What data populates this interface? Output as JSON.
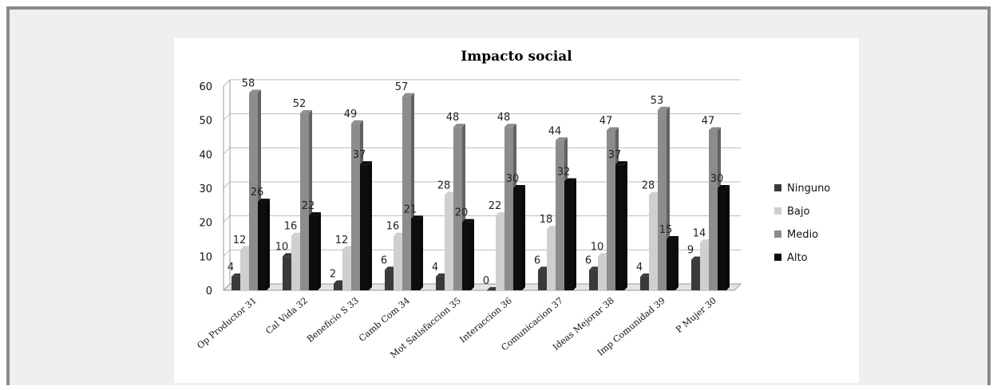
{
  "chart_data": {
    "type": "bar",
    "title": "Impacto social",
    "categories": [
      "Op_Productor_31",
      "Cal_Vida_32",
      "Beneficio_S_33",
      "Camb_Com_34",
      "Mot_Satisfaccion_35",
      "Interaccion_36",
      "Comunicacion_37",
      "Ideas_Mejorar_38",
      "Imp_Comunidad_39",
      "P_Mujer_30"
    ],
    "series": [
      {
        "name": "Ninguno",
        "color": "#3a3a3a",
        "values": [
          4,
          10,
          2,
          6,
          4,
          0,
          6,
          6,
          4,
          9
        ]
      },
      {
        "name": "Bajo",
        "color": "#cfcfcf",
        "values": [
          12,
          16,
          12,
          16,
          28,
          22,
          18,
          10,
          28,
          14
        ]
      },
      {
        "name": "Medio",
        "color": "#8c8c8c",
        "values": [
          58,
          52,
          49,
          57,
          48,
          48,
          44,
          47,
          53,
          47
        ]
      },
      {
        "name": "Alto",
        "color": "#0d0d0d",
        "values": [
          26,
          22,
          37,
          21,
          20,
          30,
          32,
          37,
          15,
          30
        ]
      }
    ],
    "yticks": [
      "0",
      "10",
      "20",
      "30",
      "40",
      "50",
      "60"
    ],
    "ylim": [
      0,
      60
    ],
    "grid": true,
    "legend_position": "right"
  }
}
